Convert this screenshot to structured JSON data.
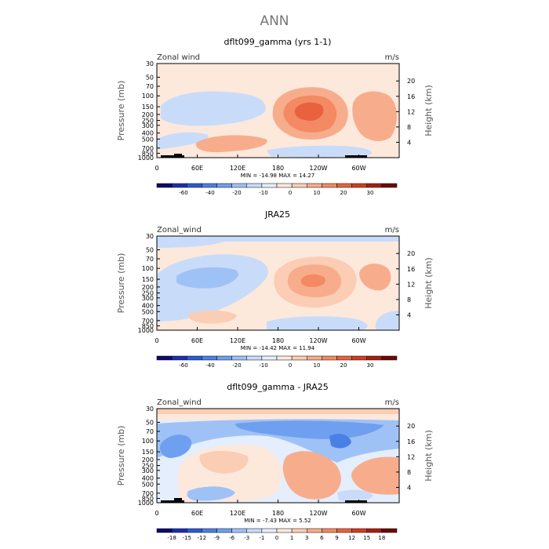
{
  "page_title": "ANN",
  "chart_data": [
    {
      "type": "heatmap",
      "title": "dflt099_gamma (yrs 1-1)",
      "corner_left": "Zonal wind",
      "corner_right": "m/s",
      "ylabel": "Pressure (mb)",
      "ylabel_right": "Height (km)",
      "y_ticks": [
        "30",
        "50",
        "70",
        "100",
        "150",
        "200",
        "250",
        "300",
        "400",
        "500",
        "700",
        "850",
        "1000"
      ],
      "y_right_ticks": [
        "20",
        "16",
        "12",
        "8",
        "4"
      ],
      "x_ticks": [
        "0",
        "60E",
        "120E",
        "180",
        "120W",
        "60W"
      ],
      "stats": "MIN = -14.98   MAX = 14.27",
      "colorbar": {
        "labels": [
          "-60",
          "-40",
          "-20",
          "-10",
          "0",
          "10",
          "20",
          "30"
        ],
        "colors": [
          "#0b0b70",
          "#1a2fb5",
          "#2b5bd8",
          "#4a7fe6",
          "#6fa0ef",
          "#9fc2f6",
          "#c8dcfa",
          "#e4eefc",
          "#fde8dc",
          "#fbcdb4",
          "#f7ad8c",
          "#f38a63",
          "#e9623f",
          "#d23c22",
          "#a81d10",
          "#6e0a05"
        ]
      },
      "contours": [
        {
          "level": "0..10",
          "color": "#fde8dc"
        },
        {
          "level": "-10..0",
          "color": "#c8dcfa"
        },
        {
          "level": "10..20",
          "color": "#f7ad8c"
        },
        {
          "level": "20..30",
          "color": "#f38a63"
        }
      ]
    },
    {
      "type": "heatmap",
      "title": "JRA25",
      "corner_left": "Zonal_wind",
      "corner_right": "m/s",
      "ylabel": "Pressure (mb)",
      "ylabel_right": "Height (km)",
      "y_ticks": [
        "30",
        "50",
        "70",
        "100",
        "150",
        "200",
        "250",
        "300",
        "400",
        "500",
        "700",
        "850",
        "1000"
      ],
      "y_right_ticks": [
        "20",
        "16",
        "12",
        "8",
        "4"
      ],
      "x_ticks": [
        "0",
        "60E",
        "120E",
        "180",
        "120W",
        "60W"
      ],
      "stats": "MIN = -14.42   MAX = 11.94",
      "colorbar": {
        "labels": [
          "-60",
          "-40",
          "-20",
          "-10",
          "0",
          "10",
          "20",
          "30"
        ],
        "colors": [
          "#0b0b70",
          "#1a2fb5",
          "#2b5bd8",
          "#4a7fe6",
          "#6fa0ef",
          "#9fc2f6",
          "#c8dcfa",
          "#e4eefc",
          "#fde8dc",
          "#fbcdb4",
          "#f7ad8c",
          "#f38a63",
          "#e9623f",
          "#d23c22",
          "#a81d10",
          "#6e0a05"
        ]
      }
    },
    {
      "type": "heatmap",
      "title": "dflt099_gamma - JRA25",
      "corner_left": "Zonal_wind",
      "corner_right": "m/s",
      "ylabel": "Pressure (mb)",
      "ylabel_right": "Height (km)",
      "y_ticks": [
        "30",
        "50",
        "70",
        "100",
        "150",
        "200",
        "250",
        "300",
        "400",
        "500",
        "700",
        "850",
        "1000"
      ],
      "y_right_ticks": [
        "20",
        "16",
        "12",
        "8",
        "4"
      ],
      "x_ticks": [
        "0",
        "60E",
        "120E",
        "180",
        "120W",
        "60W"
      ],
      "stats": "MIN = -7.43   MAX =   5.52",
      "colorbar": {
        "labels": [
          "-18",
          "-15",
          "-12",
          "-9",
          "-6",
          "-3",
          "-1",
          "0",
          "1",
          "3",
          "6",
          "9",
          "12",
          "15",
          "18"
        ],
        "colors": [
          "#0b0b70",
          "#1a2fb5",
          "#2b5bd8",
          "#4a7fe6",
          "#6fa0ef",
          "#9fc2f6",
          "#c8dcfa",
          "#e4eefc",
          "#fde8dc",
          "#fbcdb4",
          "#f7ad8c",
          "#f38a63",
          "#e9623f",
          "#d23c22",
          "#a81d10",
          "#6e0a05"
        ]
      }
    }
  ]
}
